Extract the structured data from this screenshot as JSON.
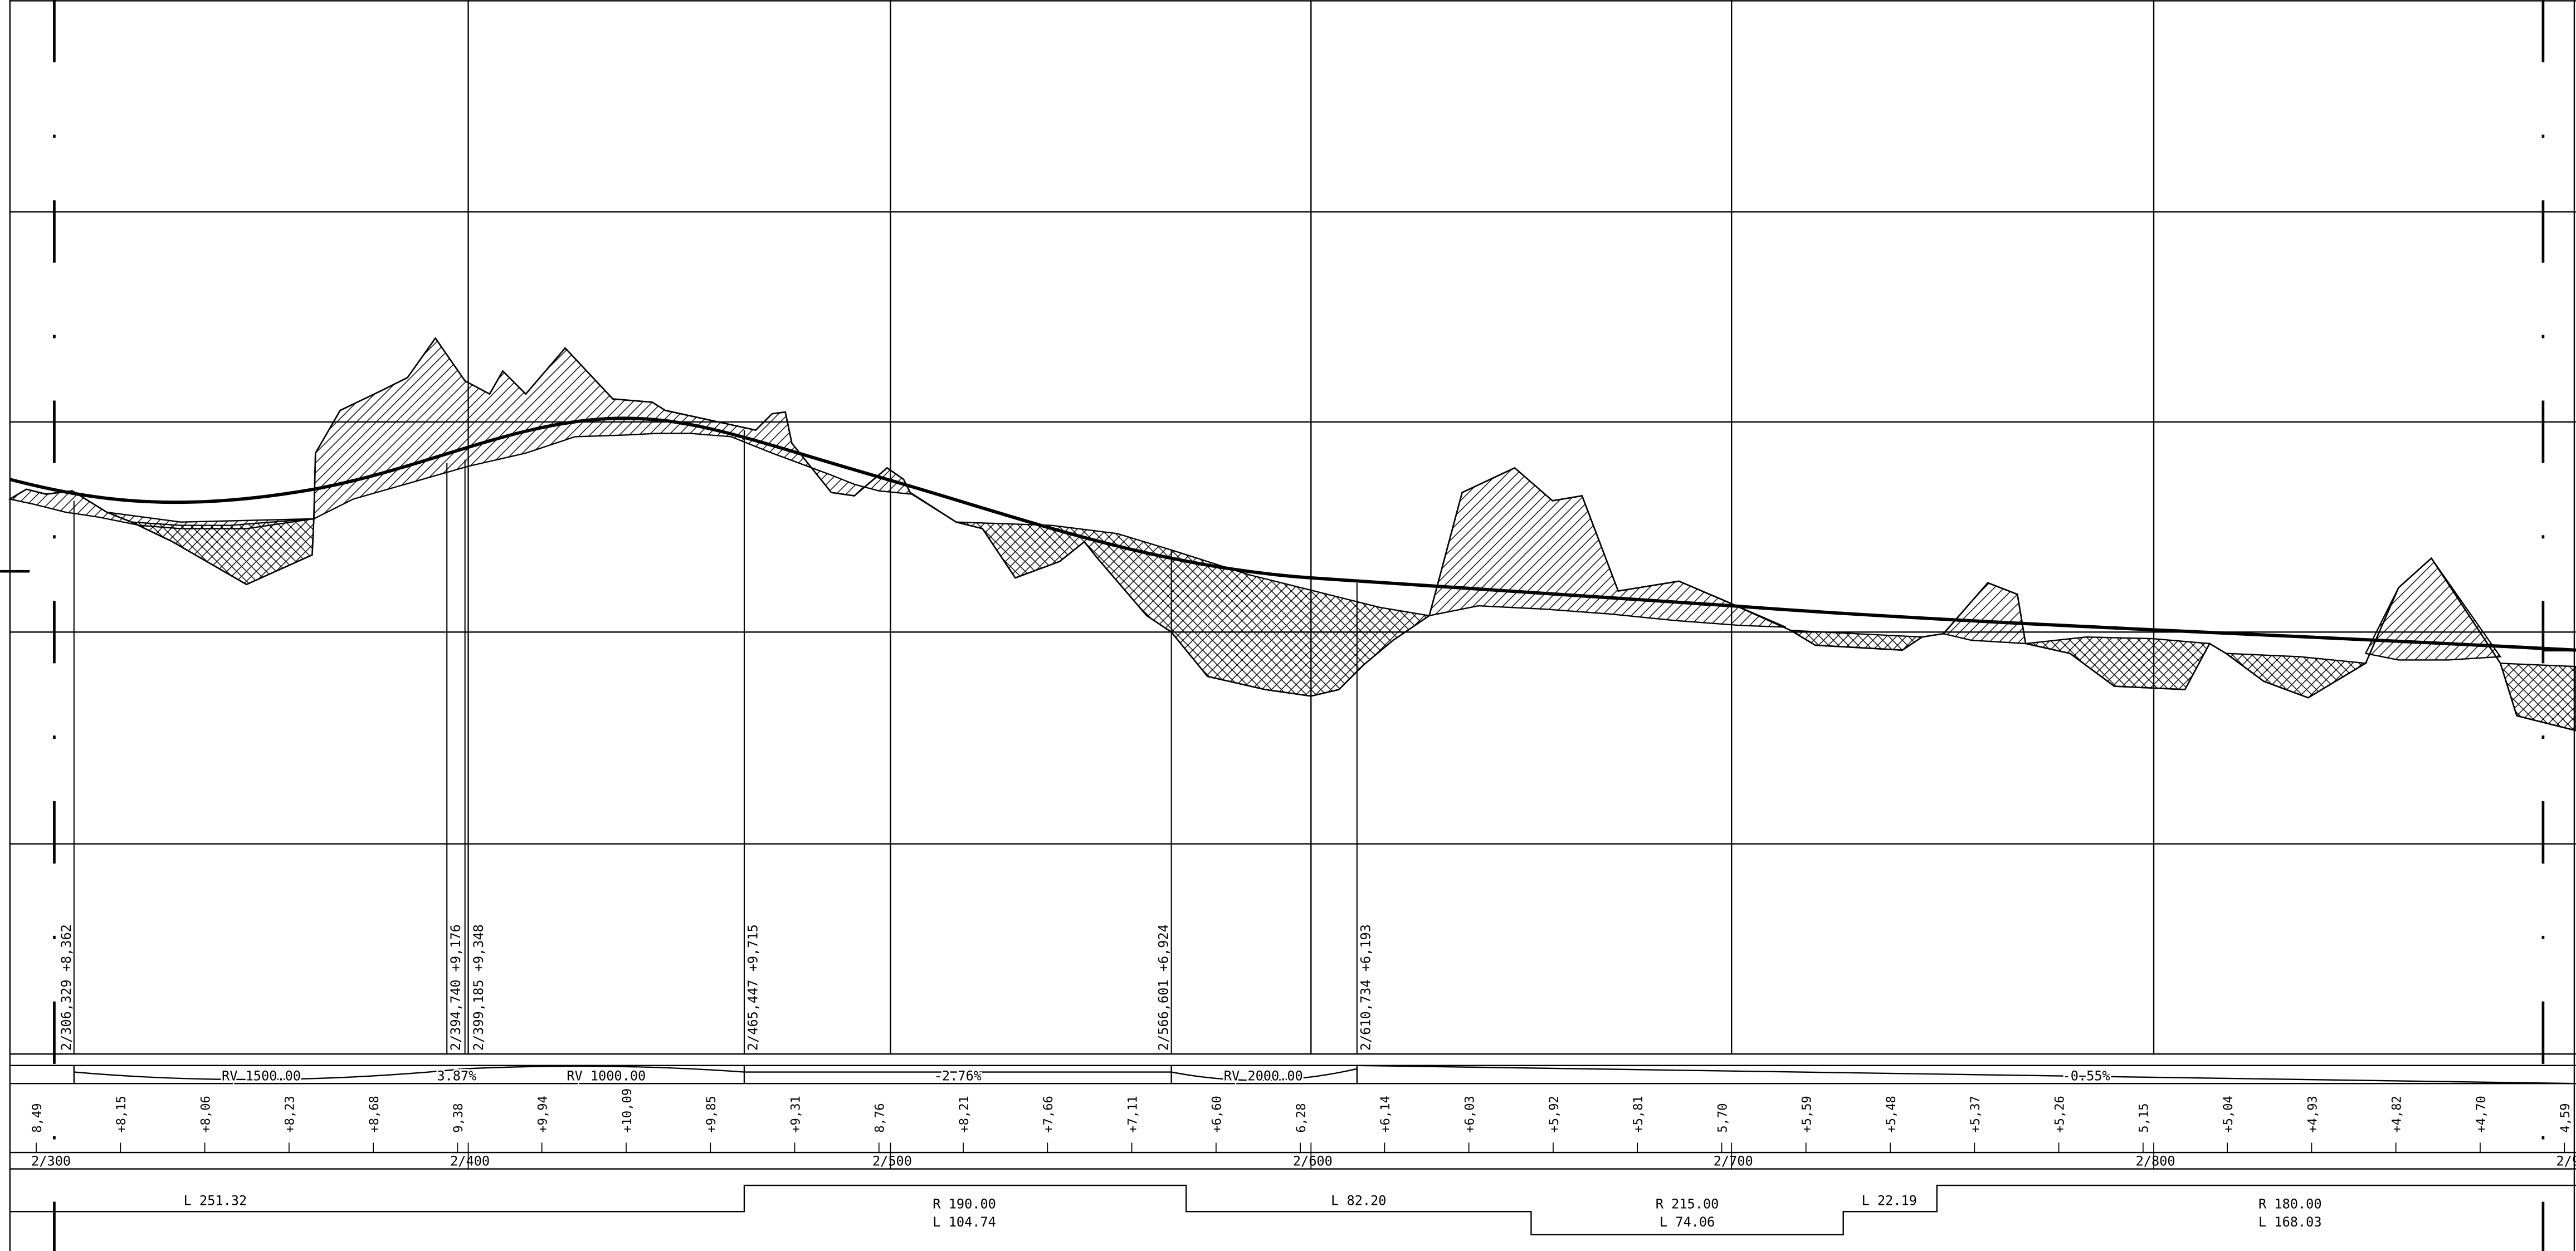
{
  "profile": {
    "vertical_labels": [
      {
        "id": "v1",
        "text": "2/306,329  +8,362"
      },
      {
        "id": "v2",
        "text": "2/394,740  +9,176"
      },
      {
        "id": "v3",
        "text": "2/399,185  +9,348"
      },
      {
        "id": "v4",
        "text": "2/465,447  +9,715"
      },
      {
        "id": "v5",
        "text": "2/566,601  +6,924"
      },
      {
        "id": "v6",
        "text": "2/610,734  +6,193"
      }
    ],
    "grade_band": [
      {
        "id": "g1",
        "text": "RV 1500.00"
      },
      {
        "id": "g2",
        "text": "3.87%"
      },
      {
        "id": "g3",
        "text": "RV 1000.00"
      },
      {
        "id": "g4",
        "text": "-2.76%"
      },
      {
        "id": "g5",
        "text": "RV 2000.00"
      },
      {
        "id": "g6",
        "text": "-0.55%"
      }
    ],
    "elevations": [
      "8,49",
      "+8,15",
      "+8,06",
      "+8,23",
      "+8,68",
      "9,38",
      "+9,94",
      "+10,09",
      "+9,85",
      "+9,31",
      "8,76",
      "+8,21",
      "+7,66",
      "+7,11",
      "+6,60",
      "6,28",
      "+6,14",
      "+6,03",
      "+5,92",
      "+5,81",
      "5,70",
      "+5,59",
      "+5,48",
      "+5,37",
      "+5,26",
      "5,15",
      "+5,04",
      "+4,93",
      "+4,82",
      "+4,70",
      "4,59"
    ],
    "stations": [
      "2/300",
      "2/400",
      "2/500",
      "2/600",
      "2/700",
      "2/800",
      "2/9"
    ],
    "alignment": [
      {
        "id": "a1",
        "lines": [
          "L 251.32"
        ]
      },
      {
        "id": "a2",
        "lines": [
          "R 190.00",
          "L 104.74"
        ]
      },
      {
        "id": "a3",
        "lines": [
          "L 82.20"
        ]
      },
      {
        "id": "a4",
        "lines": [
          "R 215.00",
          "L 74.06"
        ]
      },
      {
        "id": "a5",
        "lines": [
          "L 22.19"
        ]
      },
      {
        "id": "a6",
        "lines": [
          "R 180.00",
          "L 168.03"
        ]
      }
    ]
  }
}
